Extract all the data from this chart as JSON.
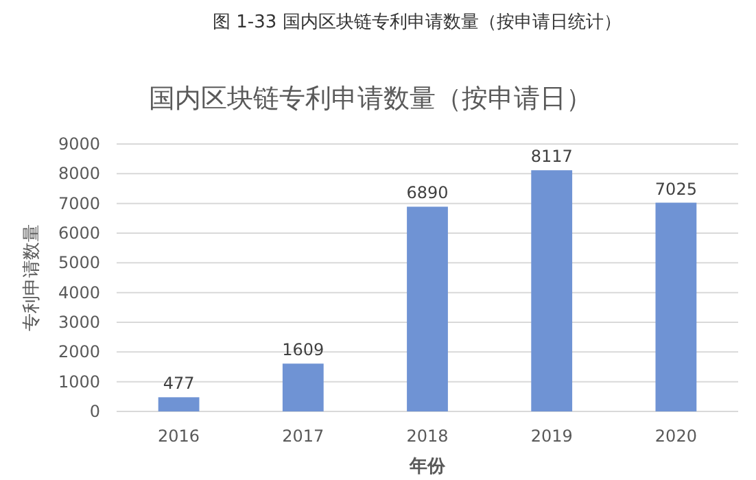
{
  "chart_data": {
    "type": "bar",
    "title": "国内区块链专利申请数量（按申请日）",
    "annotations": [
      "图 1-33  国内区块链专利申请数量（按申请日统计）"
    ],
    "xlabel": "年份",
    "ylabel": "专利申请数量",
    "categories": [
      "2016",
      "2017",
      "2018",
      "2019",
      "2020"
    ],
    "values": [
      477,
      1609,
      6890,
      8117,
      7025
    ],
    "color": "#6f93d4",
    "ylim": [
      0,
      9000
    ],
    "yticks": [
      0,
      1000,
      2000,
      3000,
      4000,
      5000,
      6000,
      7000,
      8000,
      9000
    ],
    "grid": "y",
    "data_labels": true
  }
}
